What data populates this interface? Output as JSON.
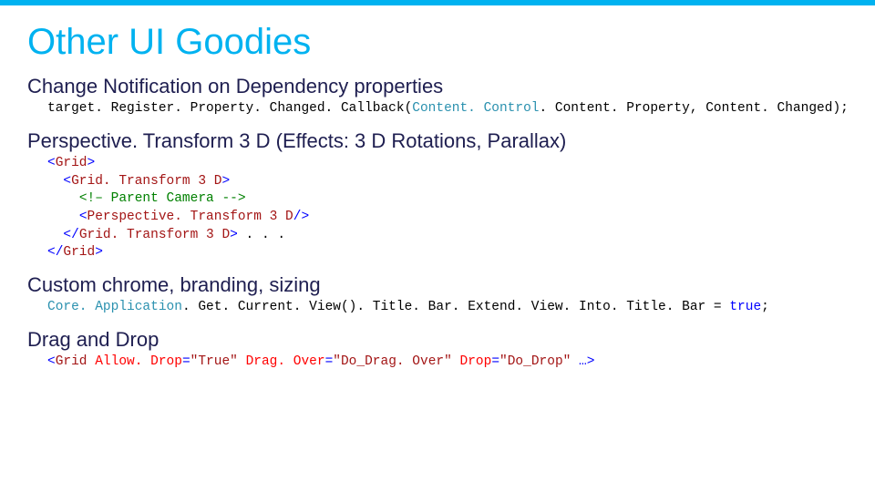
{
  "colors": {
    "accent_bar": "#00b2f0",
    "title_color": "#00b2f0",
    "heading_color": "#1e1e50",
    "code_plain": "#000000",
    "code_type": "#2b91af",
    "code_keyword": "#0000ff",
    "code_string": "#a31515",
    "code_comment": "#008000",
    "code_xml_elem": "#a31515",
    "code_xml_attr": "#ff0000",
    "code_xml_punc": "#0000ff",
    "background": "#ffffff"
  },
  "title": "Other UI Goodies",
  "sections": [
    {
      "heading": "Change Notification on Dependency properties",
      "code_tokens": [
        [
          {
            "t": "target. Register. Property. Changed. Callback(",
            "c": "plain"
          },
          {
            "t": "Content. Control",
            "c": "type"
          },
          {
            "t": ". Content. Property, Content. Changed);",
            "c": "plain"
          }
        ]
      ]
    },
    {
      "heading": "Perspective. Transform 3 D (Effects: 3 D Rotations, Parallax)",
      "code_tokens": [
        [
          {
            "t": "<",
            "c": "punc"
          },
          {
            "t": "Grid",
            "c": "elem"
          },
          {
            "t": ">",
            "c": "punc"
          }
        ],
        [
          {
            "t": "  ",
            "c": "plain"
          },
          {
            "t": "<",
            "c": "punc"
          },
          {
            "t": "Grid. Transform 3 D",
            "c": "elem"
          },
          {
            "t": ">",
            "c": "punc"
          }
        ],
        [
          {
            "t": "    ",
            "c": "plain"
          },
          {
            "t": "<!– Parent Camera -->",
            "c": "comm"
          }
        ],
        [
          {
            "t": "    ",
            "c": "plain"
          },
          {
            "t": "<",
            "c": "punc"
          },
          {
            "t": "Perspective. Transform 3 D",
            "c": "elem"
          },
          {
            "t": "/>",
            "c": "punc"
          }
        ],
        [
          {
            "t": "  ",
            "c": "plain"
          },
          {
            "t": "</",
            "c": "punc"
          },
          {
            "t": "Grid. Transform 3 D",
            "c": "elem"
          },
          {
            "t": ">",
            "c": "punc"
          },
          {
            "t": " . . .",
            "c": "plain"
          }
        ],
        [
          {
            "t": "</",
            "c": "punc"
          },
          {
            "t": "Grid",
            "c": "elem"
          },
          {
            "t": ">",
            "c": "punc"
          }
        ]
      ]
    },
    {
      "heading": "Custom chrome, branding, sizing",
      "code_tokens": [
        [
          {
            "t": "Core. Application",
            "c": "type"
          },
          {
            "t": ". Get. Current. View(). Title. Bar. Extend. View. Into. Title. Bar = ",
            "c": "plain"
          },
          {
            "t": "true",
            "c": "kw"
          },
          {
            "t": ";",
            "c": "plain"
          }
        ]
      ]
    },
    {
      "heading": "Drag and Drop",
      "code_tokens": [
        [
          {
            "t": "<",
            "c": "punc"
          },
          {
            "t": "Grid ",
            "c": "elem"
          },
          {
            "t": "Allow. Drop",
            "c": "attr"
          },
          {
            "t": "=",
            "c": "punc"
          },
          {
            "t": "\"True\" ",
            "c": "str"
          },
          {
            "t": "Drag. Over",
            "c": "attr"
          },
          {
            "t": "=",
            "c": "punc"
          },
          {
            "t": "\"Do_Drag. Over\" ",
            "c": "str"
          },
          {
            "t": "Drop",
            "c": "attr"
          },
          {
            "t": "=",
            "c": "punc"
          },
          {
            "t": "\"Do_Drop\" ",
            "c": "str"
          },
          {
            "t": "…>",
            "c": "punc"
          }
        ]
      ]
    }
  ]
}
